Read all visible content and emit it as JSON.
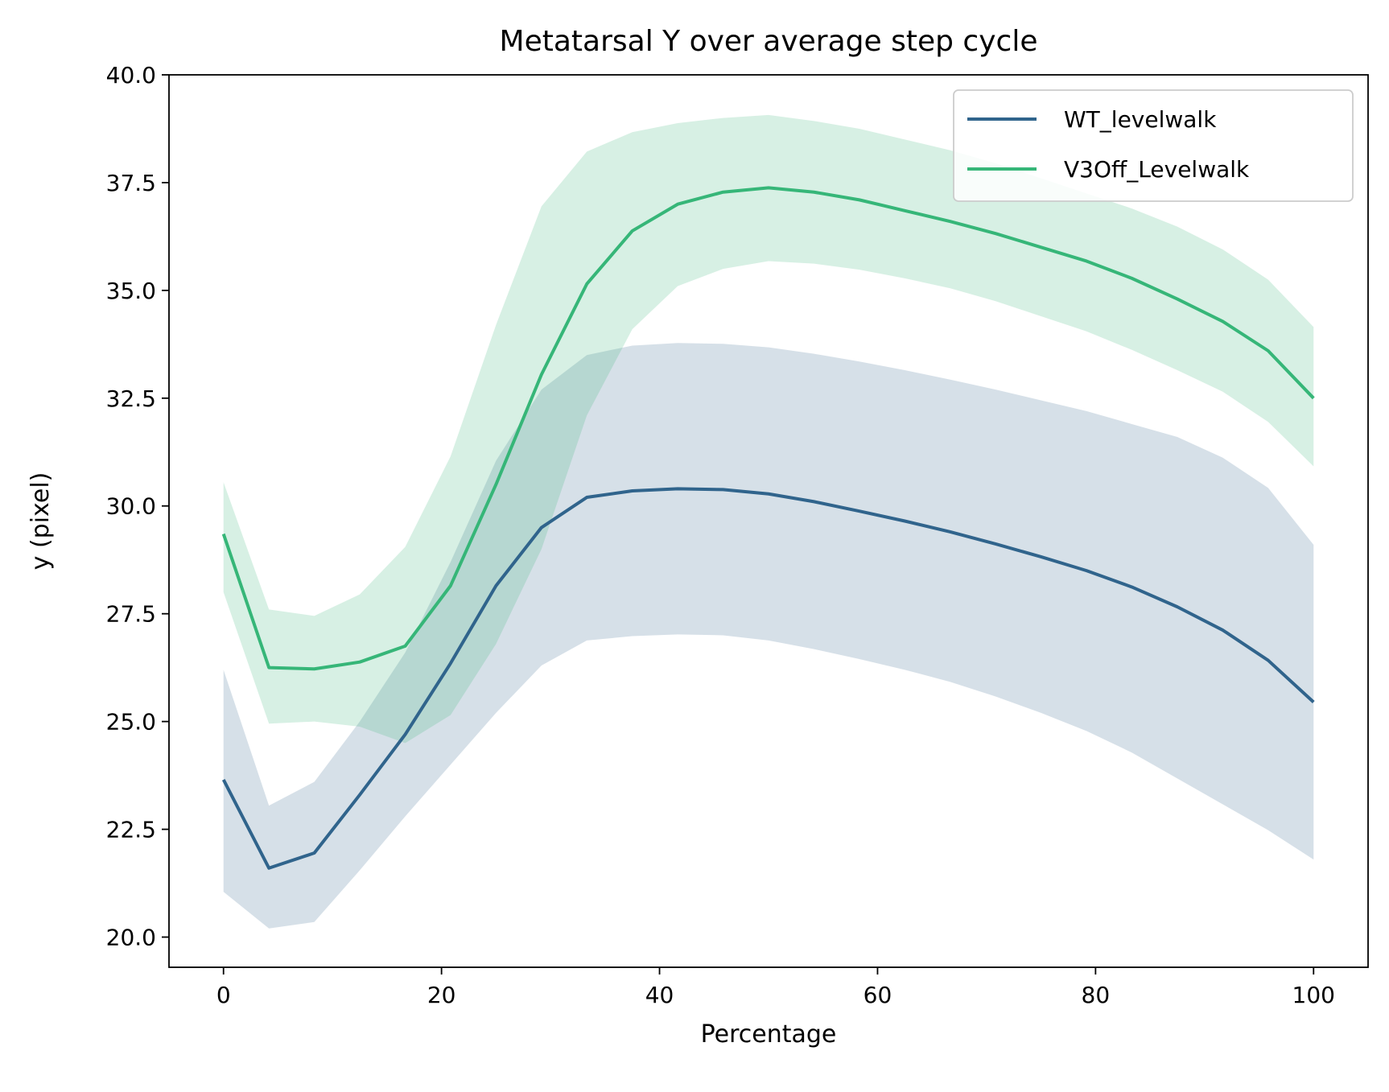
{
  "chart_data": {
    "type": "line",
    "title": "Metatarsal Y over average step cycle",
    "xlabel": "Percentage",
    "ylabel": "y (pixel)",
    "xlim": [
      -5,
      105
    ],
    "ylim": [
      19.3,
      40.0
    ],
    "xticks": [
      0,
      20,
      40,
      60,
      80,
      100
    ],
    "xtick_labels": [
      "0",
      "20",
      "40",
      "60",
      "80",
      "100"
    ],
    "yticks": [
      20.0,
      22.5,
      25.0,
      27.5,
      30.0,
      32.5,
      35.0,
      37.5,
      40.0
    ],
    "ytick_labels": [
      "20.0",
      "22.5",
      "25.0",
      "27.5",
      "30.0",
      "32.5",
      "35.0",
      "37.5",
      "40.0"
    ],
    "grid": false,
    "legend_position": "top-right",
    "x": [
      0,
      4.17,
      8.33,
      12.5,
      16.67,
      20.83,
      25,
      29.17,
      33.33,
      37.5,
      41.67,
      45.83,
      50,
      54.17,
      58.33,
      62.5,
      66.67,
      70.83,
      75,
      79.17,
      83.33,
      87.5,
      91.67,
      95.83,
      100
    ],
    "series": [
      {
        "name": "WT_levelwalk",
        "color": "#30648c",
        "values": [
          23.65,
          21.6,
          21.95,
          23.3,
          24.7,
          26.35,
          28.15,
          29.5,
          30.2,
          30.35,
          30.4,
          30.38,
          30.28,
          30.1,
          29.88,
          29.65,
          29.4,
          29.12,
          28.82,
          28.5,
          28.12,
          27.66,
          27.12,
          26.42,
          25.45
        ],
        "upper": [
          26.2,
          23.05,
          23.6,
          25.0,
          26.6,
          28.7,
          31.05,
          32.7,
          33.5,
          33.72,
          33.78,
          33.76,
          33.68,
          33.53,
          33.35,
          33.15,
          32.93,
          32.7,
          32.45,
          32.2,
          31.9,
          31.6,
          31.12,
          30.42,
          29.1
        ],
        "lower": [
          21.05,
          20.2,
          20.35,
          21.55,
          22.8,
          24.0,
          25.2,
          26.3,
          26.88,
          26.98,
          27.02,
          27.0,
          26.88,
          26.68,
          26.45,
          26.2,
          25.92,
          25.58,
          25.2,
          24.78,
          24.28,
          23.68,
          23.08,
          22.48,
          21.8
        ]
      },
      {
        "name": "V3Off_Levelwalk",
        "color": "#36b678",
        "values": [
          29.35,
          26.25,
          26.22,
          26.38,
          26.75,
          28.15,
          30.5,
          33.05,
          35.15,
          36.38,
          37.0,
          37.28,
          37.38,
          37.28,
          37.1,
          36.85,
          36.6,
          36.32,
          36.0,
          35.68,
          35.28,
          34.8,
          34.28,
          33.6,
          32.5
        ],
        "upper": [
          30.55,
          27.6,
          27.45,
          27.95,
          29.05,
          31.15,
          34.2,
          36.95,
          38.22,
          38.67,
          38.88,
          39.0,
          39.07,
          38.93,
          38.75,
          38.5,
          38.25,
          37.95,
          37.6,
          37.25,
          36.9,
          36.48,
          35.95,
          35.25,
          34.15
        ],
        "lower": [
          28.0,
          24.95,
          25.0,
          24.88,
          24.5,
          25.15,
          26.8,
          29.0,
          32.1,
          34.1,
          35.1,
          35.5,
          35.68,
          35.62,
          35.48,
          35.28,
          35.05,
          34.75,
          34.4,
          34.05,
          33.62,
          33.15,
          32.65,
          31.95,
          30.92
        ]
      }
    ]
  }
}
